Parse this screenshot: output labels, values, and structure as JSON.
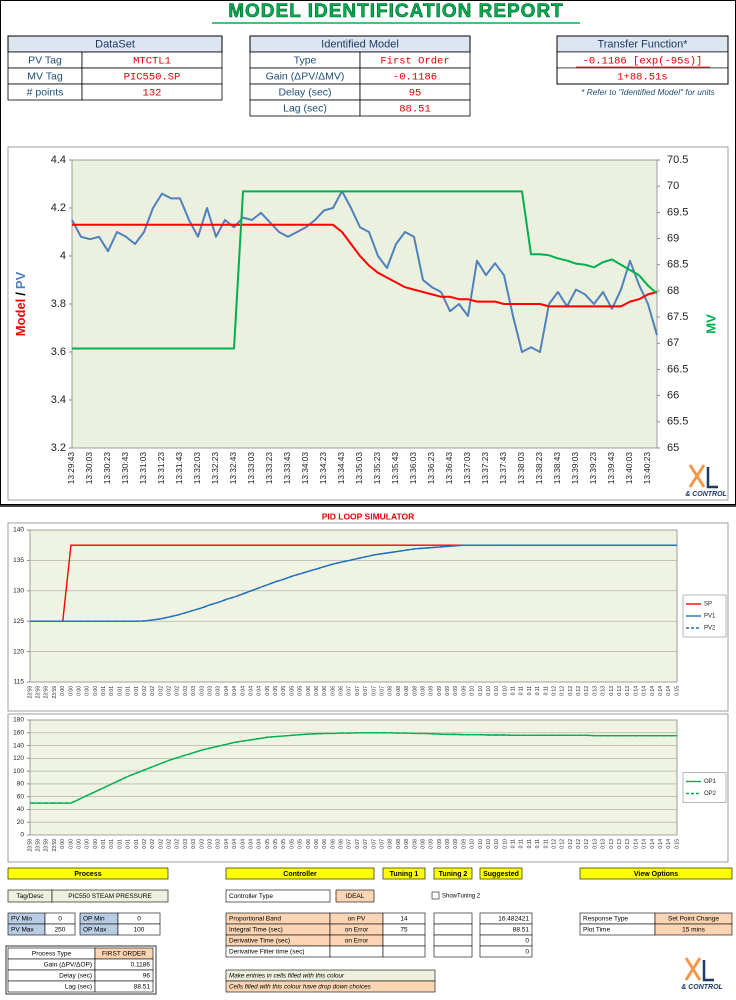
{
  "report": {
    "title": "MODEL IDENTIFICATION REPORT",
    "dataset": {
      "title": "DataSet",
      "rows": [
        [
          "PV Tag",
          "MTCTL1"
        ],
        [
          "MV Tag",
          "PIC550.SP"
        ],
        [
          "# points",
          "132"
        ]
      ]
    },
    "identified_model": {
      "title": "Identified Model",
      "rows": [
        [
          "Type",
          "First Order"
        ],
        [
          "Gain (ΔPV/ΔMV)",
          "-0.1186"
        ],
        [
          "Delay (sec)",
          "95"
        ],
        [
          "Lag (sec)",
          "88.51"
        ]
      ]
    },
    "transfer_function": {
      "title": "Transfer Function*",
      "numerator": "-0.1186 [exp(-95s)]",
      "denominator": "1+88.51s",
      "note": "* Refer to \"Identified Model\" for units"
    },
    "logo": "& CONTROL"
  },
  "chart_data": [
    {
      "type": "line",
      "categories": [
        "13:29:43",
        null,
        "13:30:03",
        null,
        "13:30:23",
        null,
        "13:30:43",
        null,
        "13:31:03",
        null,
        "13:31:23",
        null,
        "13:31:43",
        null,
        "13:32:03",
        null,
        "13:32:23",
        null,
        "13:32:43",
        null,
        "13:33:03",
        null,
        "13:33:23",
        null,
        "13:33:43",
        null,
        "13:34:03",
        null,
        "13:34:23",
        null,
        "13:34:43",
        null,
        "13:35:03",
        null,
        "13:35:23",
        null,
        "13:35:43",
        null,
        "13:36:03",
        null,
        "13:36:23",
        null,
        "13:36:43",
        null,
        "13:37:03",
        null,
        "13:37:23",
        null,
        "13:37:43",
        null,
        "13:38:03",
        null,
        "13:38:23",
        null,
        "13:38:43",
        null,
        "13:39:03",
        null,
        "13:39:23",
        null,
        "13:39:43",
        null,
        "13:40:03",
        null,
        "13:40:23",
        null
      ],
      "series": [
        {
          "name": "PV",
          "color": "#4f81bd",
          "values": [
            4.15,
            4.08,
            4.07,
            4.08,
            4.02,
            4.1,
            4.08,
            4.05,
            4.1,
            4.2,
            4.26,
            4.24,
            4.24,
            4.15,
            4.08,
            4.2,
            4.08,
            4.15,
            4.12,
            4.16,
            4.15,
            4.18,
            4.14,
            4.1,
            4.08,
            4.1,
            4.12,
            4.15,
            4.19,
            4.2,
            4.27,
            4.2,
            4.12,
            4.1,
            4.0,
            3.95,
            4.05,
            4.1,
            4.08,
            3.9,
            3.87,
            3.85,
            3.77,
            3.8,
            3.75,
            3.98,
            3.92,
            3.97,
            3.92,
            3.75,
            3.6,
            3.62,
            3.6,
            3.8,
            3.85,
            3.79,
            3.86,
            3.84,
            3.8,
            3.85,
            3.78,
            3.86,
            3.98,
            3.88,
            3.8,
            3.67
          ]
        },
        {
          "name": "Model",
          "color": "#ff0000",
          "values": [
            4.13,
            4.13,
            4.13,
            4.13,
            4.13,
            4.13,
            4.13,
            4.13,
            4.13,
            4.13,
            4.13,
            4.13,
            4.13,
            4.13,
            4.13,
            4.13,
            4.13,
            4.13,
            4.13,
            4.13,
            4.13,
            4.13,
            4.13,
            4.13,
            4.13,
            4.13,
            4.13,
            4.13,
            4.13,
            4.13,
            4.1,
            4.05,
            4.0,
            3.96,
            3.93,
            3.91,
            3.89,
            3.87,
            3.86,
            3.85,
            3.84,
            3.83,
            3.83,
            3.82,
            3.82,
            3.81,
            3.81,
            3.81,
            3.8,
            3.8,
            3.8,
            3.8,
            3.8,
            3.79,
            3.79,
            3.79,
            3.79,
            3.79,
            3.79,
            3.79,
            3.79,
            3.79,
            3.81,
            3.82,
            3.84,
            3.85
          ]
        },
        {
          "name": "MV",
          "color": "#00b050",
          "axis": "y2",
          "values": [
            66.9,
            66.9,
            66.9,
            66.9,
            66.9,
            66.9,
            66.9,
            66.9,
            66.9,
            66.9,
            66.9,
            66.9,
            66.9,
            66.9,
            66.9,
            66.9,
            66.9,
            66.9,
            66.9,
            69.9,
            69.9,
            69.9,
            69.9,
            69.9,
            69.9,
            69.9,
            69.9,
            69.9,
            69.9,
            69.9,
            69.9,
            69.9,
            69.9,
            69.9,
            69.9,
            69.9,
            69.9,
            69.9,
            69.9,
            69.9,
            69.9,
            69.9,
            69.9,
            69.9,
            69.9,
            69.9,
            69.9,
            69.9,
            69.9,
            69.9,
            69.9,
            68.7,
            68.7,
            68.68,
            68.62,
            68.58,
            68.52,
            68.5,
            68.45,
            68.55,
            68.6,
            68.5,
            68.4,
            68.3,
            68.1,
            67.95
          ]
        }
      ],
      "ylabel_sep": "/",
      "ylim": [
        3.2,
        4.4
      ],
      "yticks": [
        3.2,
        3.4,
        3.6,
        3.8,
        4,
        4.2,
        4.4
      ],
      "y2lim": [
        65,
        70.5
      ],
      "y2ticks": [
        65,
        65.5,
        66,
        66.5,
        67,
        67.5,
        68,
        68.5,
        69,
        69.5,
        70,
        70.5
      ],
      "grid": false
    },
    {
      "type": "line",
      "categories": [
        "23:59",
        "23:59",
        "23:59",
        "23:59",
        "0:00",
        "0:00",
        "0:00",
        "0:00",
        "0:00",
        "0:01",
        "0:01",
        "0:01",
        "0:01",
        "0:01",
        "0:02",
        "0:02",
        "0:02",
        "0:02",
        "0:02",
        "0:03",
        "0:03",
        "0:03",
        "0:03",
        "0:03",
        "0:04",
        "0:04",
        "0:04",
        "0:04",
        "0:04",
        "0:05",
        "0:05",
        "0:05",
        "0:05",
        "0:05",
        "0:06",
        "0:06",
        "0:06",
        "0:06",
        "0:06",
        "0:07",
        "0:07",
        "0:07",
        "0:07",
        "0:07",
        "0:08",
        "0:08",
        "0:08",
        "0:08",
        "0:08",
        "0:09",
        "0:09",
        "0:09",
        "0:09",
        "0:09",
        "0:10",
        "0:10",
        "0:10",
        "0:10",
        "0:10",
        "0:11",
        "0:11",
        "0:11",
        "0:11",
        "0:11",
        "0:12",
        "0:12",
        "0:12",
        "0:12",
        "0:12",
        "0:13",
        "0:13",
        "0:13",
        "0:13",
        "0:13",
        "0:14",
        "0:14",
        "0:14",
        "0:14",
        "0:14",
        "0:15"
      ],
      "series": [
        {
          "name": "SP",
          "color": "#ff0000",
          "values": [
            125,
            125,
            125,
            125,
            125,
            137.5,
            137.5,
            137.5,
            137.5,
            137.5,
            137.5,
            137.5,
            137.5,
            137.5,
            137.5,
            137.5,
            137.5,
            137.5,
            137.5,
            137.5,
            137.5,
            137.5,
            137.5,
            137.5,
            137.5,
            137.5,
            137.5,
            137.5,
            137.5,
            137.5,
            137.5,
            137.5,
            137.5,
            137.5,
            137.5,
            137.5,
            137.5,
            137.5,
            137.5,
            137.5,
            137.5,
            137.5,
            137.5,
            137.5,
            137.5,
            137.5,
            137.5,
            137.5,
            137.5,
            137.5,
            137.5,
            137.5,
            137.5,
            137.5,
            137.5,
            137.5,
            137.5,
            137.5,
            137.5,
            137.5,
            137.5,
            137.5,
            137.5,
            137.5,
            137.5,
            137.5,
            137.5,
            137.5,
            137.5,
            137.5,
            137.5,
            137.5,
            137.5,
            137.5,
            137.5,
            137.5,
            137.5,
            137.5,
            137.5,
            137.5
          ]
        },
        {
          "name": "PV1",
          "color": "#1f6fbf",
          "values": [
            125,
            125,
            125,
            125,
            125,
            125,
            125,
            125,
            125,
            125,
            125,
            125,
            125,
            125,
            125.05,
            125.2,
            125.4,
            125.7,
            126.0,
            126.4,
            126.8,
            127.2,
            127.7,
            128.1,
            128.6,
            129.0,
            129.5,
            130.0,
            130.5,
            131.0,
            131.5,
            131.9,
            132.4,
            132.8,
            133.2,
            133.6,
            134.0,
            134.4,
            134.7,
            135.0,
            135.3,
            135.6,
            135.9,
            136.1,
            136.3,
            136.5,
            136.7,
            136.9,
            137.0,
            137.1,
            137.2,
            137.3,
            137.4,
            137.5,
            137.5,
            137.5,
            137.5,
            137.5,
            137.5,
            137.5,
            137.5,
            137.5,
            137.5,
            137.5,
            137.5,
            137.5,
            137.5,
            137.5,
            137.5,
            137.5,
            137.5,
            137.5,
            137.5,
            137.5,
            137.5,
            137.5,
            137.5,
            137.5,
            137.5,
            137.5
          ]
        },
        {
          "name": "PV2",
          "color": "#1f6fbf",
          "dash": true,
          "values": [
            125,
            125,
            125,
            125,
            125,
            125,
            125,
            125,
            125,
            125,
            125,
            125,
            125,
            125,
            125.05,
            125.2,
            125.4,
            125.7,
            126.0,
            126.4,
            126.8,
            127.2,
            127.7,
            128.1,
            128.6,
            129.0,
            129.5,
            130.0,
            130.5,
            131.0,
            131.5,
            131.9,
            132.4,
            132.8,
            133.2,
            133.6,
            134.0,
            134.4,
            134.7,
            135.0,
            135.3,
            135.6,
            135.9,
            136.1,
            136.3,
            136.5,
            136.7,
            136.9,
            137.0,
            137.1,
            137.2,
            137.3,
            137.4,
            137.5,
            137.5,
            137.5,
            137.5,
            137.5,
            137.5,
            137.5,
            137.5,
            137.5,
            137.5,
            137.5,
            137.5,
            137.5,
            137.5,
            137.5,
            137.5,
            137.5,
            137.5,
            137.5,
            137.5,
            137.5,
            137.5,
            137.5,
            137.5,
            137.5,
            137.5,
            137.5
          ]
        }
      ],
      "ylim": [
        115,
        140
      ],
      "yticks": [
        115,
        120,
        125,
        130,
        135,
        140
      ],
      "grid": true,
      "legend": "right"
    },
    {
      "type": "line",
      "categories": [
        "23:59",
        "23:59",
        "23:59",
        "23:59",
        "0:00",
        "0:00",
        "0:00",
        "0:00",
        "0:00",
        "0:01",
        "0:01",
        "0:01",
        "0:01",
        "0:01",
        "0:02",
        "0:02",
        "0:02",
        "0:02",
        "0:02",
        "0:03",
        "0:03",
        "0:03",
        "0:03",
        "0:03",
        "0:04",
        "0:04",
        "0:04",
        "0:04",
        "0:04",
        "0:05",
        "0:05",
        "0:05",
        "0:05",
        "0:05",
        "0:06",
        "0:06",
        "0:06",
        "0:06",
        "0:06",
        "0:07",
        "0:07",
        "0:07",
        "0:07",
        "0:07",
        "0:08",
        "0:08",
        "0:08",
        "0:08",
        "0:08",
        "0:09",
        "0:09",
        "0:09",
        "0:09",
        "0:09",
        "0:10",
        "0:10",
        "0:10",
        "0:10",
        "0:10",
        "0:11",
        "0:11",
        "0:11",
        "0:11",
        "0:11",
        "0:12",
        "0:12",
        "0:12",
        "0:12",
        "0:12",
        "0:13",
        "0:13",
        "0:13",
        "0:13",
        "0:13",
        "0:14",
        "0:14",
        "0:14",
        "0:14",
        "0:14",
        "0:15"
      ],
      "series": [
        {
          "name": "OP1",
          "color": "#00b050",
          "values": [
            50,
            50,
            50,
            50,
            50,
            50,
            56,
            62,
            68,
            74,
            80,
            86,
            92,
            97,
            102,
            107,
            112,
            117,
            121,
            125,
            129,
            133,
            136,
            139,
            142,
            145,
            147,
            149,
            151,
            153,
            154,
            155,
            156,
            157,
            158,
            158.5,
            159,
            159,
            159.5,
            159.5,
            160,
            160,
            160,
            160,
            160,
            159.5,
            159.5,
            159,
            159,
            158.5,
            158,
            157.5,
            157.5,
            157,
            157,
            157,
            156.5,
            156.5,
            156.5,
            156,
            156,
            156,
            156,
            156,
            156,
            156,
            156,
            156,
            156,
            155.5,
            155.5,
            155.5,
            155.5,
            155.5,
            155.5,
            155.5,
            155.5,
            155.5,
            155.5,
            155.5
          ]
        },
        {
          "name": "OP2",
          "color": "#00b050",
          "dash": true,
          "values": [
            50,
            50,
            50,
            50,
            50,
            50,
            56,
            62,
            68,
            74,
            80,
            86,
            92,
            97,
            102,
            107,
            112,
            117,
            121,
            125,
            129,
            133,
            136,
            139,
            142,
            145,
            147,
            149,
            151,
            153,
            154,
            155,
            156,
            157,
            158,
            158.5,
            159,
            159,
            159.5,
            159.5,
            160,
            160,
            160,
            160,
            160,
            159.5,
            159.5,
            159,
            159,
            158.5,
            158,
            157.5,
            157.5,
            157,
            157,
            157,
            156.5,
            156.5,
            156.5,
            156,
            156,
            156,
            156,
            156,
            156,
            156,
            156,
            156,
            156,
            155.5,
            155.5,
            155.5,
            155.5,
            155.5,
            155.5,
            155.5,
            155.5,
            155.5,
            155.5,
            155.5
          ]
        }
      ],
      "ylim": [
        0,
        180
      ],
      "yticks": [
        0,
        20,
        40,
        60,
        80,
        100,
        120,
        140,
        160,
        180
      ],
      "grid": true,
      "legend": "right"
    }
  ],
  "simulator": {
    "title": "PID LOOP SIMULATOR",
    "headers": [
      "Process",
      "Controller",
      "Tuning 1",
      "Tuning 2",
      "Suggested",
      "View Options"
    ],
    "tag_desc": [
      "Tag/Desc",
      "PIC550 STEAM PRESSURE"
    ],
    "controller_type": [
      "Controller Type",
      "IDEAL"
    ],
    "show_tuning": "ShowTuning 2",
    "limits": [
      [
        "PV Min",
        "0",
        "OP Min",
        "0"
      ],
      [
        "PV Max",
        "250",
        "OP Max",
        "100"
      ]
    ],
    "tuning": [
      [
        "Proportional Band",
        "on PV",
        "14",
        null,
        "16.482421"
      ],
      [
        "Integral Time (sec)",
        "on Error",
        "75",
        null,
        "88.51"
      ],
      [
        "Derivative Time (sec)",
        "on Error",
        null,
        null,
        "0"
      ],
      [
        "Derivative Filter time (sec)",
        null,
        null,
        null,
        "0"
      ]
    ],
    "view_options": [
      [
        "Response Type",
        "Set Point Change"
      ],
      [
        "Plot Time",
        "15 mins"
      ]
    ],
    "process": [
      [
        "Process Type",
        "FIRST ORDER"
      ],
      [
        "Gain (ΔPV/ΔOP)",
        "0.1186"
      ],
      [
        "Delay (sec)",
        "96"
      ],
      [
        "Lag (sec)",
        "88.51"
      ]
    ],
    "notes": [
      "Make entries in cells filled with this colour",
      "Cells filled with this colour have drop down choices"
    ]
  }
}
